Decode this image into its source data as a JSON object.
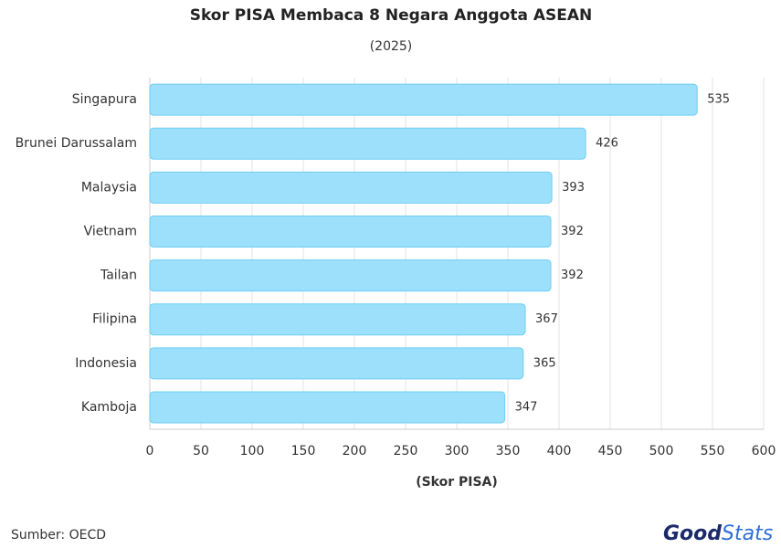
{
  "chart_data": {
    "type": "barh",
    "title": "Skor PISA Membaca 8 Negara Anggota ASEAN",
    "subtitle": "(2025)",
    "x_label": "(Skor PISA)",
    "categories": [
      "Singapura",
      "Brunei Darussalam",
      "Malaysia",
      "Vietnam",
      "Tailan",
      "Filipina",
      "Indonesia",
      "Kamboja"
    ],
    "values": [
      535,
      426,
      393,
      392,
      392,
      367,
      365,
      347
    ],
    "color": "#9de0fb",
    "edge_color": "#6fcdf3",
    "xlim": [
      0,
      600
    ],
    "xticks": [
      0,
      50,
      100,
      150,
      200,
      250,
      300,
      350,
      400,
      450,
      500,
      550,
      600
    ],
    "grid": true
  },
  "source": "Sumber: OECD",
  "brand": [
    "Good",
    "Stats"
  ]
}
